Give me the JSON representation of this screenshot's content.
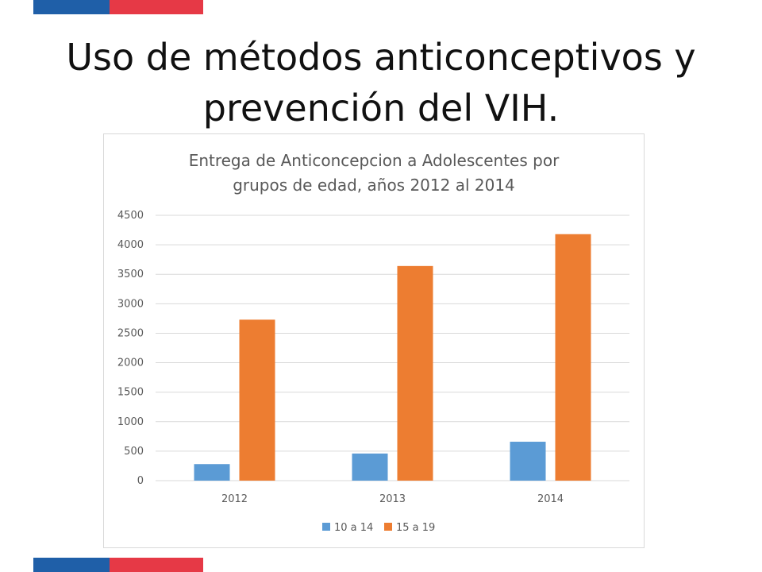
{
  "slide": {
    "title_line1": "Uso de métodos anticonceptivos y",
    "title_line2": "prevención del VIH."
  },
  "colors": {
    "stripe_blue": "#1f5fa8",
    "stripe_red": "#e63946",
    "series_1": "#5b9bd5",
    "series_2": "#ed7d31"
  },
  "chart_data": {
    "type": "bar",
    "title_line1": "Entrega de Anticoncepcion a Adolescentes por",
    "title_line2": "grupos de edad, años 2012 al 2014",
    "categories": [
      "2012",
      "2013",
      "2014"
    ],
    "series": [
      {
        "name": "10 a 14",
        "values": [
          280,
          460,
          660
        ]
      },
      {
        "name": "15 a 19",
        "values": [
          2730,
          3640,
          4180
        ]
      }
    ],
    "ylim": [
      0,
      4500
    ],
    "yticks": [
      0,
      500,
      1000,
      1500,
      2000,
      2500,
      3000,
      3500,
      4000,
      4500
    ],
    "grid": true,
    "legend": "bottom"
  }
}
